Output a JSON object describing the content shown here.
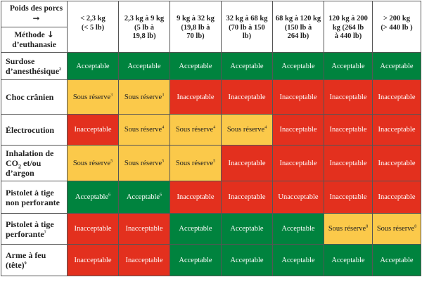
{
  "header": {
    "corner_top": "Poids des porcs",
    "corner_bottom": "Méthode d’euthanasie",
    "arrow_right": "➞",
    "arrow_down": "↓"
  },
  "columns": [
    {
      "line1": "< 2,3 kg",
      "line2": "(< 5 lb)",
      "line3": ""
    },
    {
      "line1": "2,3 kg à 9 kg",
      "line2": "(5 lb à",
      "line3": "19,8 lb)"
    },
    {
      "line1": "9 kg à 32 kg",
      "line2": "(19,8 lb à",
      "line3": "70 lb)"
    },
    {
      "line1": "32 kg à 68 kg",
      "line2": "(70 lb à 150",
      "line3": "lb)"
    },
    {
      "line1": "68 kg à 120 kg",
      "line2": "(150 lb à",
      "line3": "264 lb)"
    },
    {
      "line1": "120 kg à 200",
      "line2": "kg (264 lb",
      "line3": "à 440 lb)"
    },
    {
      "line1": "> 200 kg",
      "line2": "(> 440 lb )",
      "line3": ""
    }
  ],
  "rows": [
    {
      "l1": "Surdose",
      "l2": "d’anesthésique",
      "l2sup": "2",
      "l3": "",
      "cells": [
        {
          "t": "Acceptable",
          "s": "",
          "k": "ok"
        },
        {
          "t": "Acceptable",
          "s": "",
          "k": "ok"
        },
        {
          "t": "Acceptable",
          "s": "",
          "k": "ok"
        },
        {
          "t": "Acceptable",
          "s": "",
          "k": "ok"
        },
        {
          "t": "Acceptable",
          "s": "",
          "k": "ok"
        },
        {
          "t": "Acceptable",
          "s": "",
          "k": "ok"
        },
        {
          "t": "Acceptable",
          "s": "",
          "k": "ok"
        }
      ]
    },
    {
      "l1": "Choc crânien",
      "l2": "",
      "l2sup": "",
      "l3": "",
      "cells": [
        {
          "t": "Sous réserve",
          "s": "3",
          "k": "res"
        },
        {
          "t": "Sous réserve",
          "s": "3",
          "k": "res"
        },
        {
          "t": "Inacceptable",
          "s": "",
          "k": "no"
        },
        {
          "t": "Inacceptable",
          "s": "",
          "k": "no"
        },
        {
          "t": "Inacceptable",
          "s": "",
          "k": "no"
        },
        {
          "t": "Inacceptable",
          "s": "",
          "k": "no"
        },
        {
          "t": "Inacceptable",
          "s": "",
          "k": "no"
        }
      ]
    },
    {
      "l1": "Électrocution",
      "l2": "",
      "l2sup": "",
      "l3": "",
      "cells": [
        {
          "t": "Inacceptable",
          "s": "",
          "k": "no"
        },
        {
          "t": "Sous réserve",
          "s": "4",
          "k": "res"
        },
        {
          "t": "Sous réserve",
          "s": "4",
          "k": "res"
        },
        {
          "t": "Sous réserve",
          "s": "4",
          "k": "res"
        },
        {
          "t": "Inacceptable",
          "s": "",
          "k": "no"
        },
        {
          "t": "Inacceptable",
          "s": "",
          "k": "no"
        },
        {
          "t": "Inacceptable",
          "s": "",
          "k": "no"
        }
      ]
    },
    {
      "l1": "Inhalation de",
      "l2": "CO",
      "l2sub": "2",
      "l2b": " et/ou",
      "l3": "d’argon",
      "cells": [
        {
          "t": "Sous réserve",
          "s": "5",
          "k": "res"
        },
        {
          "t": "Sous réserve",
          "s": "5",
          "k": "res"
        },
        {
          "t": "Sous réserve",
          "s": "5",
          "k": "res"
        },
        {
          "t": "Inacceptable",
          "s": "",
          "k": "no"
        },
        {
          "t": "Inacceptable",
          "s": "",
          "k": "no"
        },
        {
          "t": "Inacceptable",
          "s": "",
          "k": "no"
        },
        {
          "t": "Inacceptable",
          "s": "",
          "k": "no"
        }
      ]
    },
    {
      "l1": "Pistolet à tige",
      "l2": "non perforante",
      "l2sup": "",
      "l3": "",
      "cells": [
        {
          "t": "Acceptable",
          "s": "6",
          "k": "ok"
        },
        {
          "t": "Acceptable",
          "s": "6",
          "k": "ok"
        },
        {
          "t": "Inacceptable",
          "s": "",
          "k": "no"
        },
        {
          "t": "Inacceptable",
          "s": "",
          "k": "no"
        },
        {
          "t": "Unacceptable",
          "s": "",
          "k": "no"
        },
        {
          "t": "Inacceptable",
          "s": "",
          "k": "no"
        },
        {
          "t": "Inacceptable",
          "s": "",
          "k": "no"
        }
      ]
    },
    {
      "l1": "Pistolet à tige",
      "l2": "perforante",
      "l2sup": "7",
      "l3": "",
      "cells": [
        {
          "t": "Inacceptable",
          "s": "",
          "k": "no"
        },
        {
          "t": "Inacceptable",
          "s": "",
          "k": "no"
        },
        {
          "t": "Acceptable",
          "s": "",
          "k": "ok"
        },
        {
          "t": "Acceptable",
          "s": "",
          "k": "ok"
        },
        {
          "t": "Acceptable",
          "s": "",
          "k": "ok"
        },
        {
          "t": "Sous réserve",
          "s": "8",
          "k": "res"
        },
        {
          "t": "Sous réserve",
          "s": "8",
          "k": "res"
        }
      ]
    },
    {
      "l1": "Arme à feu",
      "l2": "(tête)",
      "l2sup": "9",
      "l3": "",
      "cells": [
        {
          "t": "Inacceptable",
          "s": "",
          "k": "no"
        },
        {
          "t": "Inacceptable",
          "s": "",
          "k": "no"
        },
        {
          "t": "Acceptable",
          "s": "",
          "k": "ok"
        },
        {
          "t": "Acceptable",
          "s": "",
          "k": "ok"
        },
        {
          "t": "Acceptable",
          "s": "",
          "k": "ok"
        },
        {
          "t": "Acceptable",
          "s": "",
          "k": "ok"
        },
        {
          "t": "Acceptable",
          "s": "",
          "k": "ok"
        }
      ]
    }
  ],
  "colors": {
    "acceptable": "#00833e",
    "inacceptable": "#e3301e",
    "sous_reserve": "#fbc94a"
  }
}
